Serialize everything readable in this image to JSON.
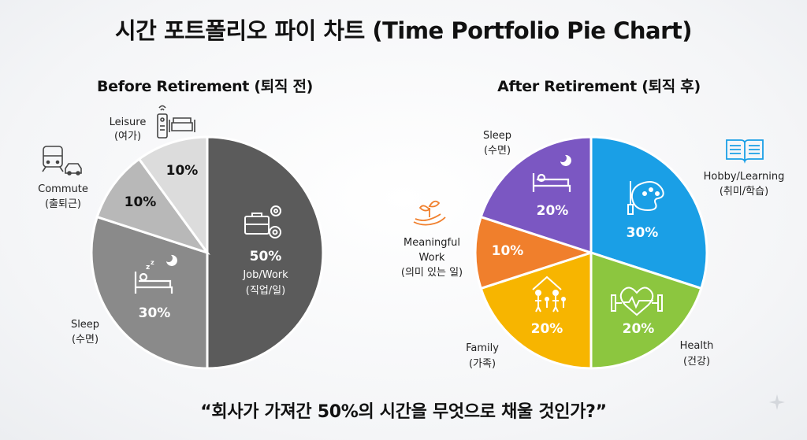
{
  "title": "시간 포트폴리오 파이 차트 (Time Portfolio Pie Chart)",
  "quote": "“회사가 가져간 50%의 시간을 무엇으로 채울 것인가?”",
  "chart_data": [
    {
      "type": "pie",
      "title": "Before Retirement (퇴직 전)",
      "slices": [
        {
          "label": "Job/Work",
          "label_ko": "(직업/일)",
          "value": 50,
          "value_label": "50%",
          "color": "#5b5b5b",
          "icon": "briefcase-gear-icon"
        },
        {
          "label": "Sleep",
          "label_ko": "(수면)",
          "value": 30,
          "value_label": "30%",
          "color": "#8a8a8a",
          "icon": "bed-icon"
        },
        {
          "label": "Commute",
          "label_ko": "(출퇴근)",
          "value": 10,
          "value_label": "10%",
          "color": "#b8b8b8",
          "icon": "train-car-icon"
        },
        {
          "label": "Leisure",
          "label_ko": "(여가)",
          "value": 10,
          "value_label": "10%",
          "color": "#dcdcdc",
          "icon": "remote-sofa-icon"
        }
      ]
    },
    {
      "type": "pie",
      "title": "After Retirement (퇴직 후)",
      "slices": [
        {
          "label": "Hobby/Learning",
          "label_ko": "(취미/학습)",
          "value": 30,
          "value_label": "30%",
          "color": "#1a9fe6",
          "icon": "palette-brush-icon"
        },
        {
          "label": "Health",
          "label_ko": "(건강)",
          "value": 20,
          "value_label": "20%",
          "color": "#8cc63f",
          "icon": "heartbeat-dumbbell-icon"
        },
        {
          "label": "Family",
          "label_ko": "(가족)",
          "value": 20,
          "value_label": "20%",
          "color": "#f7b500",
          "icon": "family-house-icon"
        },
        {
          "label": "Meaningful Work",
          "label_ko": "(의미 있는 일)",
          "value": 10,
          "value_label": "10%",
          "color": "#f07f2c",
          "icon": "sprout-hand-icon"
        },
        {
          "label": "Sleep",
          "label_ko": "(수면)",
          "value": 20,
          "value_label": "20%",
          "color": "#7b57c2",
          "icon": "bed-moon-icon"
        }
      ]
    }
  ]
}
